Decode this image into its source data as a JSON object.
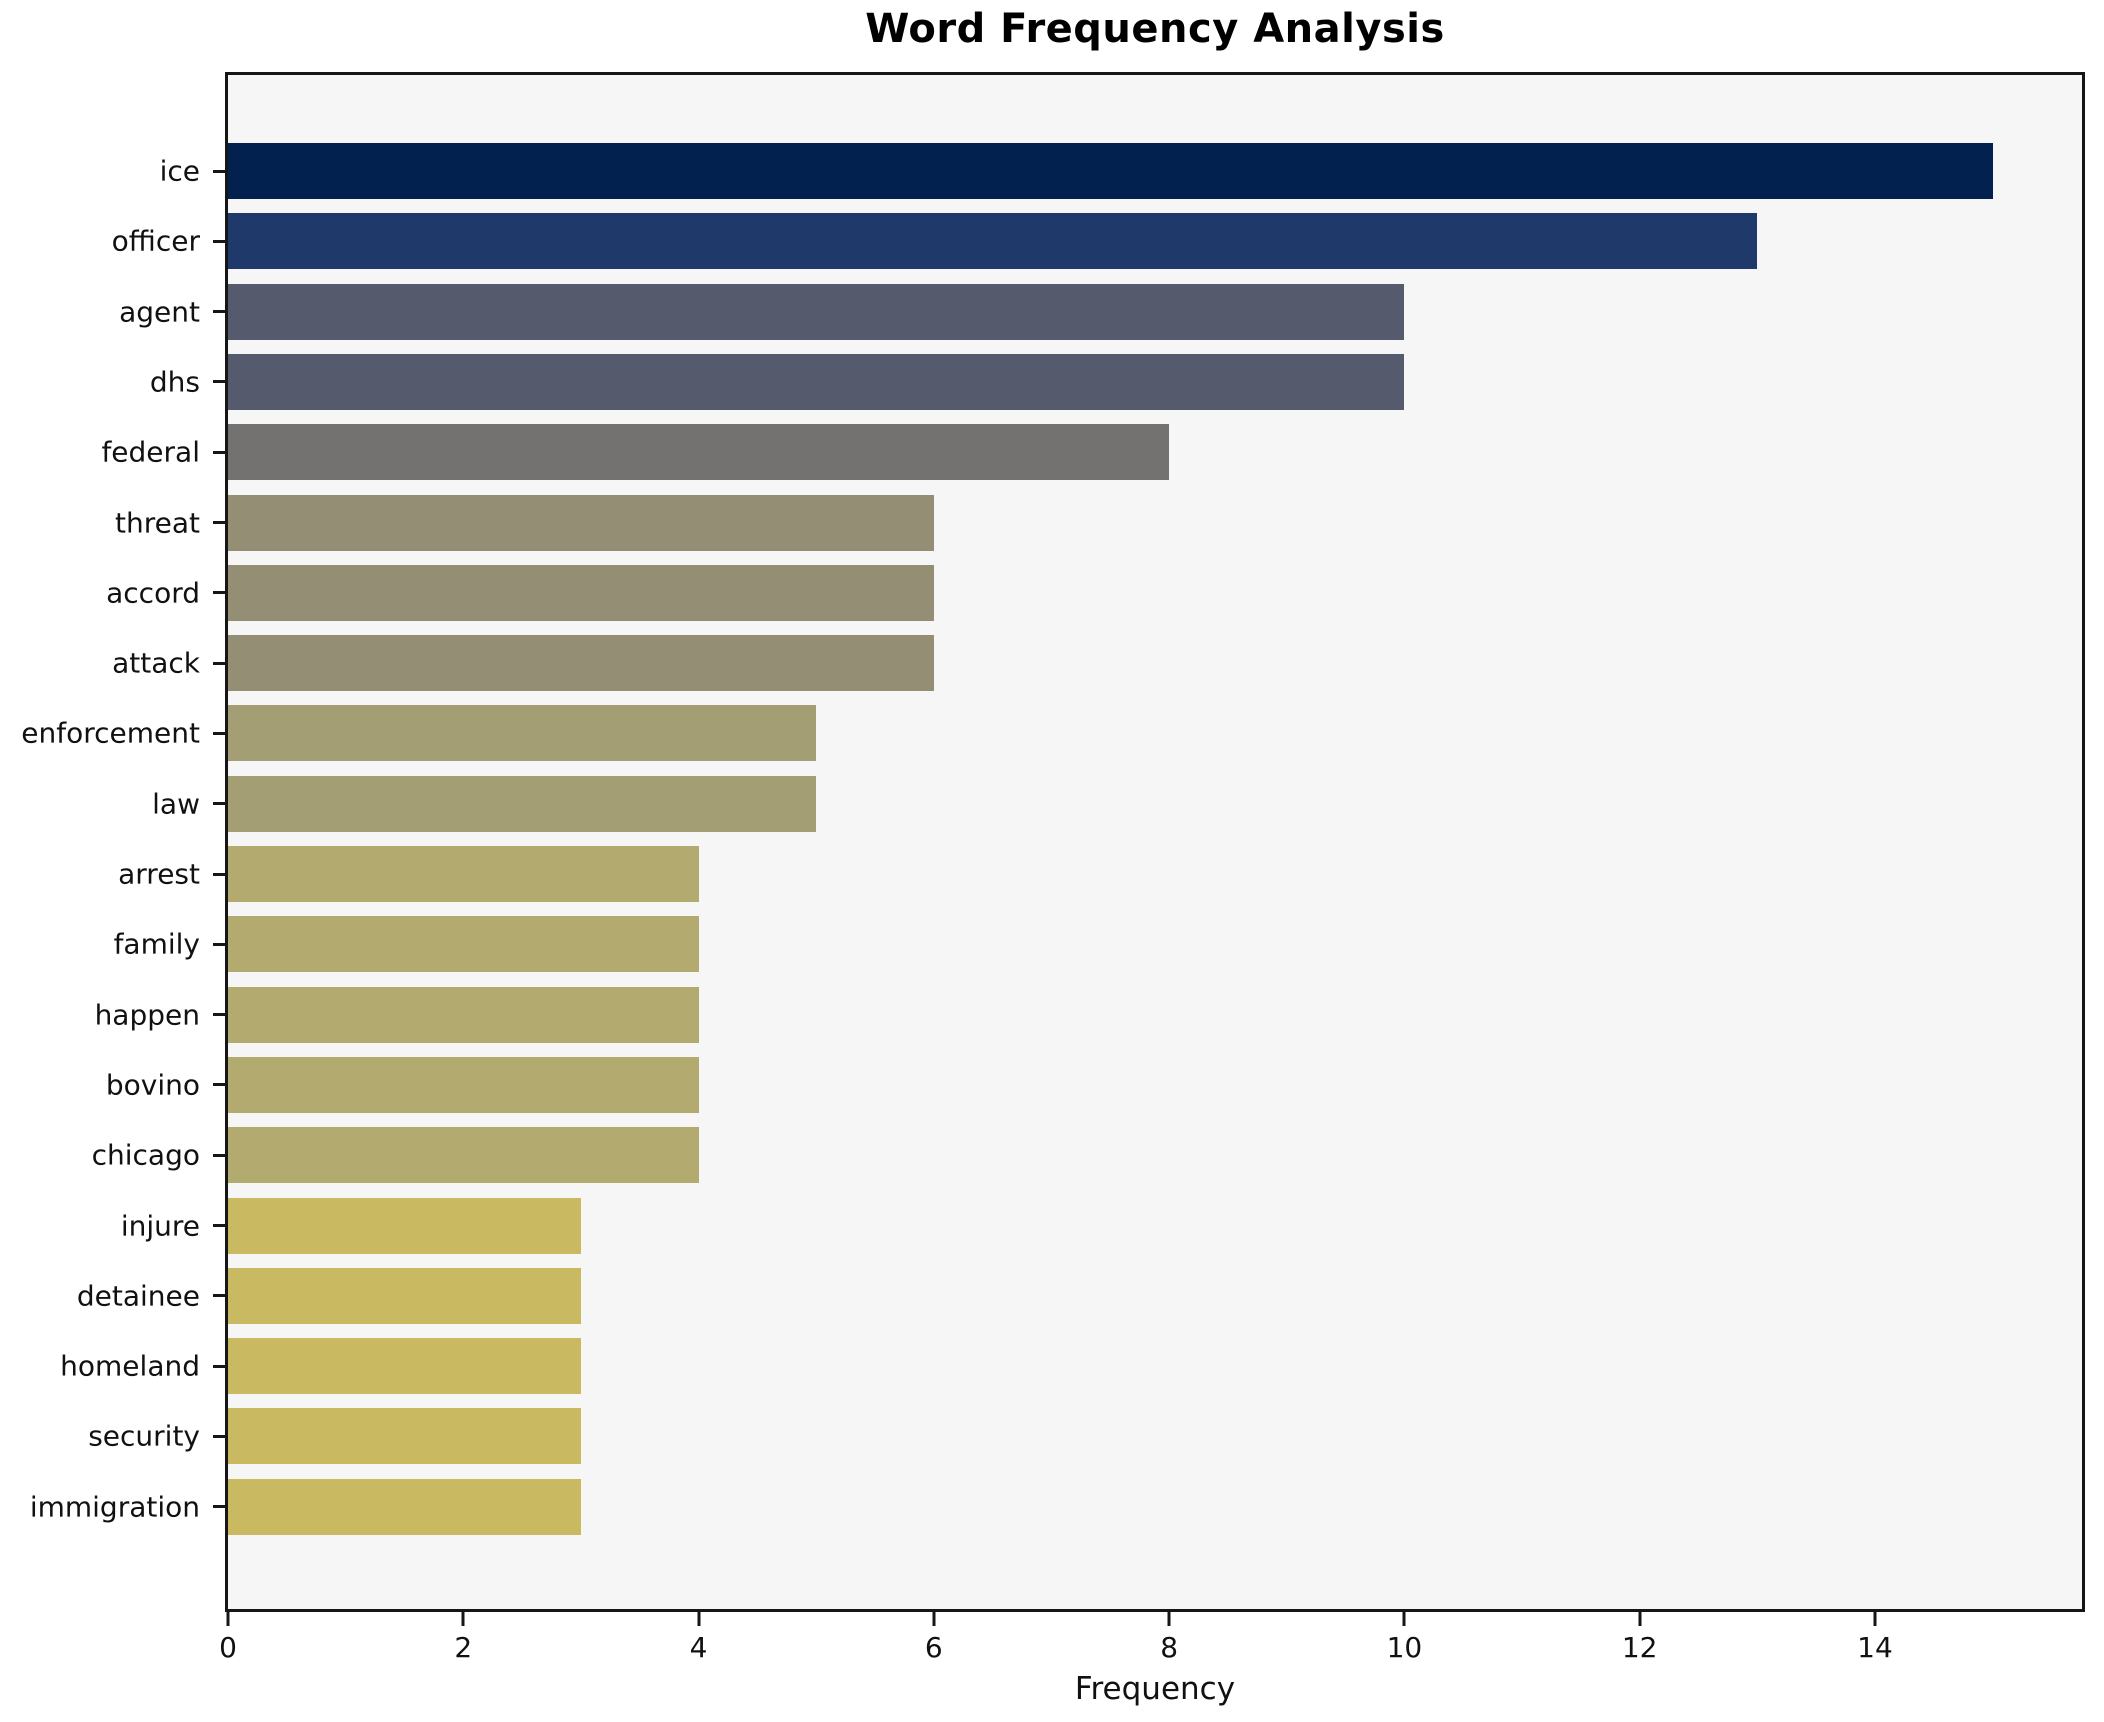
{
  "title": "Word Frequency Analysis",
  "chart_data": {
    "type": "bar",
    "orientation": "horizontal",
    "title": "Word Frequency Analysis",
    "xlabel": "Frequency",
    "ylabel": "",
    "categories": [
      "ice",
      "officer",
      "agent",
      "dhs",
      "federal",
      "threat",
      "accord",
      "attack",
      "enforcement",
      "law",
      "arrest",
      "family",
      "happen",
      "bovino",
      "chicago",
      "injure",
      "detainee",
      "homeland",
      "security",
      "immigration"
    ],
    "values": [
      15,
      13,
      10,
      10,
      8,
      6,
      6,
      6,
      5,
      5,
      4,
      4,
      4,
      4,
      4,
      3,
      3,
      3,
      3,
      3
    ],
    "bar_colors": [
      "#02214f",
      "#20396b",
      "#555b6d",
      "#555b6d",
      "#737271",
      "#948e74",
      "#948e74",
      "#948e74",
      "#a49e75",
      "#a49e75",
      "#b2aa6e",
      "#b2aa6e",
      "#b2aa6e",
      "#b2aa6e",
      "#b2aa6e",
      "#c9ba62",
      "#c9ba62",
      "#c9ba62",
      "#c9ba62",
      "#c9ba62"
    ],
    "xlim": [
      0,
      15.76
    ],
    "xticks": [
      0,
      2,
      4,
      6,
      8,
      10,
      12,
      14
    ],
    "grid": false,
    "legend": null,
    "plot_background": "#f6f6f6",
    "figure_background": "#ffffff",
    "spine_color": "#161616"
  }
}
